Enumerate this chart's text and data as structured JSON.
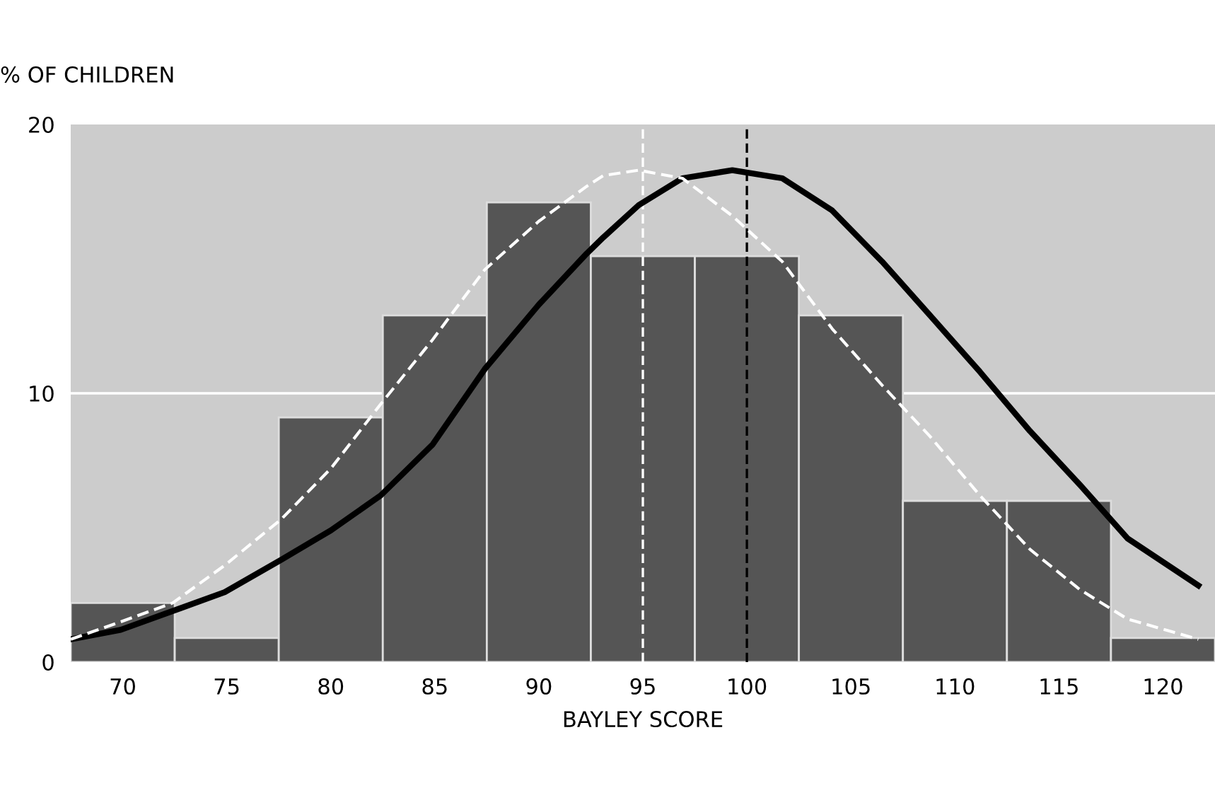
{
  "chart_data": {
    "type": "histogram",
    "ylabel": "% OF CHILDREN",
    "xlabel": "BAYLEY SCORE",
    "xlim": [
      67.5,
      122.5
    ],
    "xticks": [
      70,
      75,
      80,
      85,
      90,
      95,
      100,
      105,
      110,
      115,
      120
    ],
    "ylim": [
      0,
      20
    ],
    "yticks": [
      0,
      10,
      20
    ],
    "series": [
      {
        "color": "#555555",
        "bins": [
          67.5,
          72.5,
          77.5,
          82.5,
          87.5,
          92.5,
          97.5,
          102.5,
          107.5,
          112.5,
          117.5,
          122.5
        ],
        "values": [
          2.2,
          0.9,
          9.1,
          12.9,
          17.1,
          15.1,
          15.1,
          12.9,
          6.0,
          6.0,
          0.9
        ]
      },
      {
        "type": "line",
        "color": "#000000",
        "line_style": "solid",
        "x": [
          67.5,
          69.9,
          74.9,
          77.6,
          80,
          82.4,
          84.9,
          87.4,
          90,
          92.3,
          93.1,
          94.8,
          96.9,
          99.3,
          101.7,
          104.1,
          106.5,
          108.8,
          111.2,
          113.6,
          116,
          118.3,
          121.7
        ],
        "values": [
          0.85,
          1.2,
          2.6,
          3.8,
          4.9,
          6.2,
          8.1,
          10.9,
          13.3,
          15.2,
          15.8,
          17.0,
          18.0,
          18.3,
          18.0,
          16.8,
          14.9,
          12.9,
          10.8,
          8.6,
          6.6,
          4.6,
          2.85
        ]
      },
      {
        "type": "line",
        "color": "#ffffff",
        "line_style": "dashed",
        "x": [
          67.5,
          69.9,
          72.4,
          74.9,
          77.6,
          80,
          82.4,
          84.9,
          87.4,
          90,
          92.3,
          93.1,
          94.8,
          96.9,
          99.3,
          101.7,
          104.1,
          106.5,
          108.8,
          111.2,
          113.6,
          116,
          118.3,
          121.7
        ],
        "values": [
          0.85,
          1.5,
          2.2,
          3.6,
          5.3,
          7.2,
          9.6,
          12.0,
          14.6,
          16.4,
          17.7,
          18.1,
          18.3,
          18.0,
          16.6,
          14.9,
          12.4,
          10.3,
          8.4,
          6.2,
          4.2,
          2.7,
          1.6,
          0.85
        ]
      }
    ],
    "ref_lines": [
      {
        "axis": "y",
        "value": 10,
        "color": "#ffffff",
        "line_style": "solid"
      },
      {
        "axis": "x",
        "value": 95,
        "color": "#ffffff",
        "line_style": "dashed"
      },
      {
        "axis": "x",
        "value": 100,
        "color": "#000000",
        "line_style": "dashed"
      }
    ]
  }
}
